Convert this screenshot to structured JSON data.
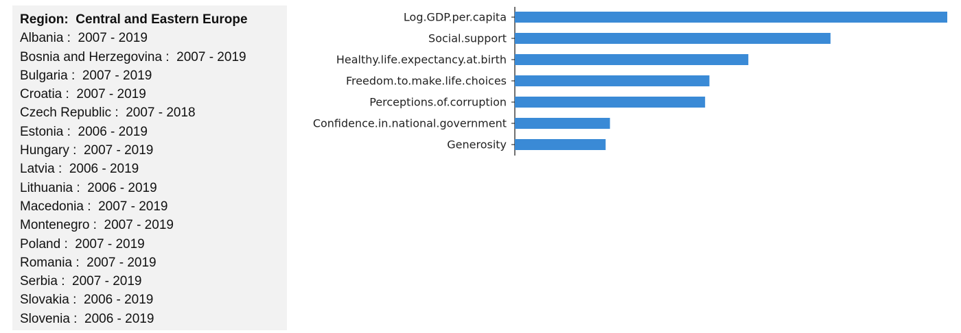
{
  "region": {
    "label": "Region:",
    "name": "Central and Eastern Europe",
    "countries": [
      {
        "name": "Albania",
        "range": "2007 - 2019"
      },
      {
        "name": "Bosnia and Herzegovina",
        "range": "2007 - 2019"
      },
      {
        "name": "Bulgaria",
        "range": "2007 - 2019"
      },
      {
        "name": "Croatia",
        "range": "2007 - 2019"
      },
      {
        "name": "Czech Republic",
        "range": "2007 - 2018"
      },
      {
        "name": "Estonia",
        "range": "2006 - 2019"
      },
      {
        "name": "Hungary",
        "range": "2007 - 2019"
      },
      {
        "name": "Latvia",
        "range": "2006 - 2019"
      },
      {
        "name": "Lithuania",
        "range": "2006 - 2019"
      },
      {
        "name": "Macedonia",
        "range": "2007 - 2019"
      },
      {
        "name": "Montenegro",
        "range": "2007 - 2019"
      },
      {
        "name": "Poland",
        "range": "2007 - 2019"
      },
      {
        "name": "Romania",
        "range": "2007 - 2019"
      },
      {
        "name": "Serbia",
        "range": "2007 - 2019"
      },
      {
        "name": "Slovakia",
        "range": "2006 - 2019"
      },
      {
        "name": "Slovenia",
        "range": "2006 - 2019"
      }
    ]
  },
  "chart_data": {
    "type": "bar",
    "orientation": "horizontal",
    "categories": [
      "Log.GDP.per.capita",
      "Social.support",
      "Healthy.life.expectancy.at.birth",
      "Freedom.to.make.life.choices",
      "Perceptions.of.corruption",
      "Confidence.in.national.government",
      "Generosity"
    ],
    "values": [
      1.0,
      0.73,
      0.54,
      0.45,
      0.44,
      0.22,
      0.21
    ],
    "xlim": [
      0,
      1.0
    ],
    "bar_color": "#3a8ad6",
    "axis_color": "#111111",
    "grid": false,
    "title": "",
    "xlabel": "",
    "ylabel": ""
  }
}
